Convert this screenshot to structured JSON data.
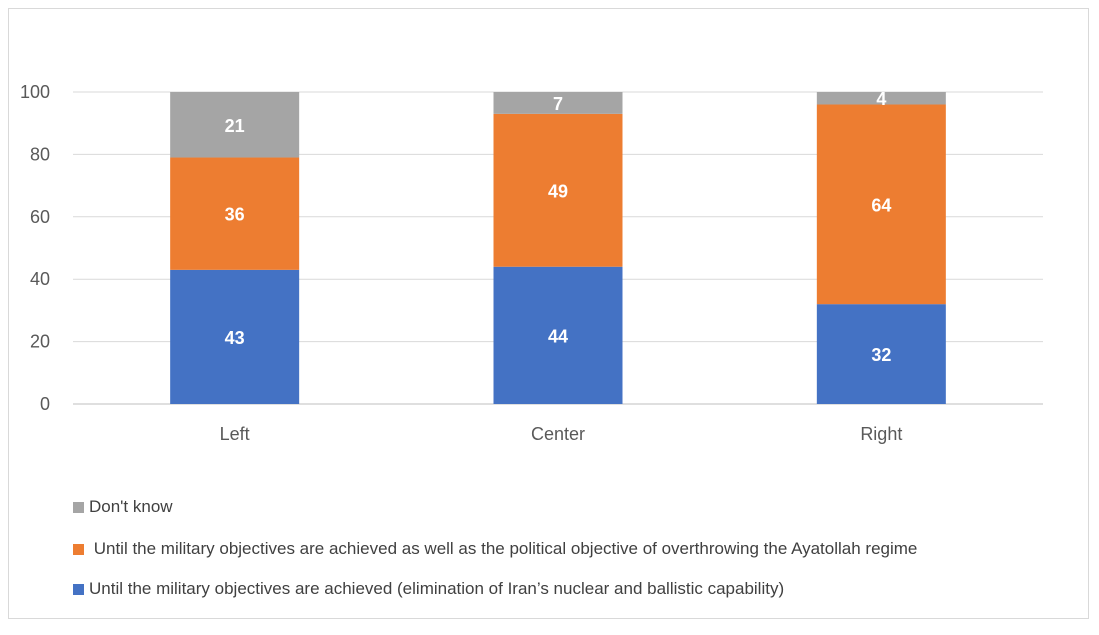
{
  "chart_data": {
    "type": "bar",
    "stacked": true,
    "title": "",
    "xlabel": "",
    "ylabel": "",
    "ylim": [
      0,
      100
    ],
    "yticks": [
      0,
      20,
      40,
      60,
      80,
      100
    ],
    "grid": true,
    "categories": [
      "Left",
      "Center",
      "Right"
    ],
    "series": [
      {
        "name": "Until the military objectives are achieved (elimination of Iran’s nuclear and ballistic capability)",
        "color": "#4472C4",
        "values": [
          43,
          44,
          32
        ]
      },
      {
        "name": " Until the military objectives are achieved as well as the political objective of overthrowing the Ayatollah regime",
        "color": "#ED7D31",
        "values": [
          36,
          49,
          64
        ]
      },
      {
        "name": "Don't know",
        "color": "#A5A5A5",
        "values": [
          21,
          7,
          4
        ]
      }
    ],
    "legend_position": "bottom"
  }
}
